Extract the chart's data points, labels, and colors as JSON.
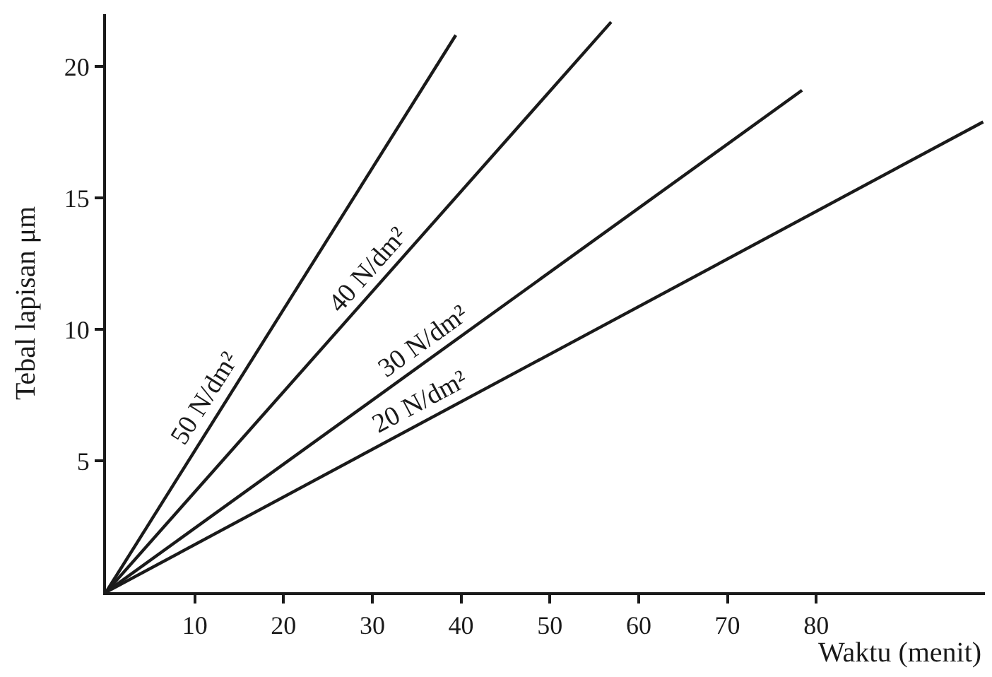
{
  "chart_data": {
    "type": "line",
    "xlabel": "Waktu (menit)",
    "ylabel": "Tebal lapisan μm",
    "series": [
      {
        "color": "#1a1a1a",
        "x": [
          0,
          39.4
        ],
        "values": [
          0,
          21.2
        ]
      },
      {
        "color": "#1a1a1a",
        "x": [
          0,
          56.9
        ],
        "values": [
          0,
          21.7
        ]
      },
      {
        "color": "#1a1a1a",
        "x": [
          0,
          78.4
        ],
        "values": [
          0,
          19.1
        ]
      },
      {
        "color": "#1a1a1a",
        "x": [
          0,
          98.8
        ],
        "values": [
          0,
          17.9
        ]
      }
    ],
    "annotations": [
      {
        "text": "50 N/dm²",
        "x": 13,
        "y": 7.0
      },
      {
        "text": "40 N/dm²",
        "x": 31,
        "y": 11.8
      },
      {
        "text": "30 N/dm²",
        "x": 37,
        "y": 9.0
      },
      {
        "text": "20 N/dm²",
        "x": 36.4,
        "y": 6.6
      }
    ],
    "xlim": [
      0,
      99
    ],
    "ylim": [
      0,
      22
    ],
    "xticks": [
      10,
      20,
      30,
      40,
      50,
      60,
      70,
      80
    ],
    "yticks": [
      5,
      10,
      15,
      20
    ],
    "marker": "none",
    "line_style": "solid"
  }
}
